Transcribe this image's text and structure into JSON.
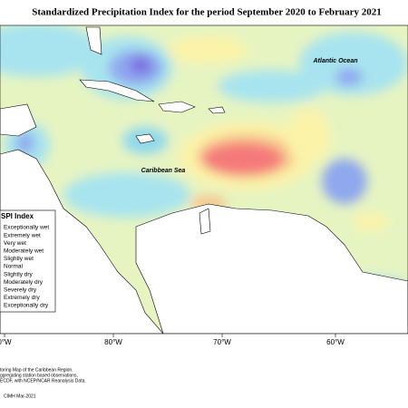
{
  "header": {
    "title": "Standardized Precipitation Index for the period September 2020 to February 2021"
  },
  "map": {
    "labels": [
      "Atlantic Ocean",
      "Caribbean Sea"
    ],
    "longitudes": [
      "0°W",
      "80°W",
      "70°W",
      "60°W"
    ]
  },
  "legend": {
    "title": "SPI Index",
    "items": [
      "Exceptionally wet",
      "Extremely wet",
      "Very wet",
      "Moderately wet",
      "Slightly wet",
      "Normal",
      "Slightly dry",
      "Moderately dry",
      "Severely dry",
      "Extremely dry",
      "Exceptionally dry"
    ]
  },
  "notes": [
    "toring Map of the Caribbean Region.",
    "ggregating station based observations,",
    "ECDF, with NCEP/NCAR Reanalysis Data.",
    "CIMH Mar-2021"
  ]
}
